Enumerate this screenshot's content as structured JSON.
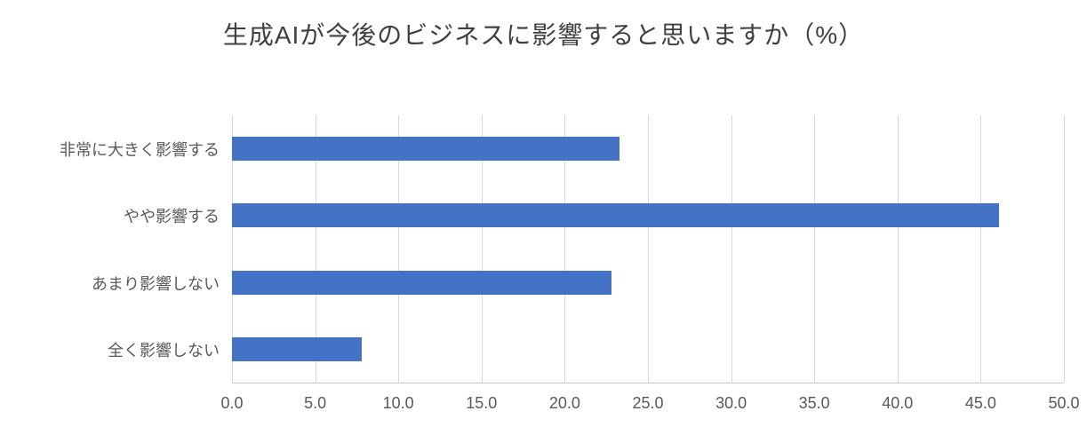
{
  "chart_data": {
    "type": "bar",
    "orientation": "horizontal",
    "title": "生成AIが今後のビジネスに影響すると思いますか（%）",
    "categories": [
      "非常に大きく影響する",
      "やや影響する",
      "あまり影響しない",
      "全く影響しない"
    ],
    "values": [
      23.3,
      46.1,
      22.8,
      7.8
    ],
    "xlabel": "",
    "ylabel": "",
    "xlim": [
      0,
      50
    ],
    "xticks": [
      0,
      5,
      10,
      15,
      20,
      25,
      30,
      35,
      40,
      45,
      50
    ],
    "tick_labels": [
      "0.0",
      "5.0",
      "10.0",
      "15.0",
      "20.0",
      "25.0",
      "30.0",
      "35.0",
      "40.0",
      "45.0",
      "50.0"
    ],
    "grid": true,
    "legend": false,
    "colors": {
      "bar": "#4472C4",
      "grid": "#D9D9D9",
      "axis_line": "#C9C9C9",
      "tick_text": "#595959",
      "category_text": "#595959",
      "title_text": "#404040"
    }
  }
}
